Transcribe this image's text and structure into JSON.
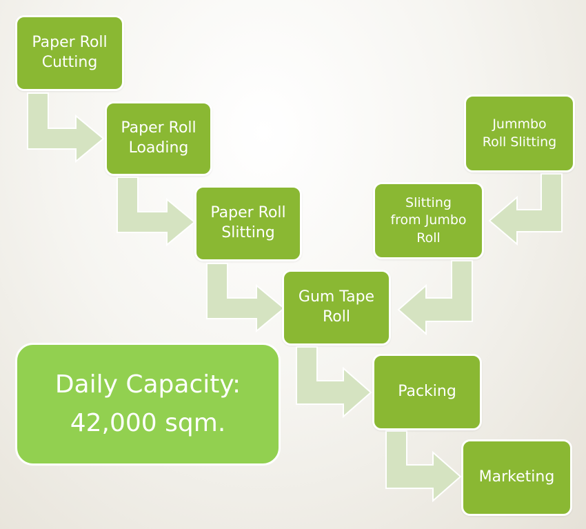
{
  "steps": {
    "paper_roll_cutting": "Paper Roll\nCutting",
    "paper_roll_loading": "Paper Roll\nLoading",
    "paper_roll_slitting": "Paper Roll\nSlitting",
    "jummbo_roll_slitting": "Jummbo\nRoll Slitting",
    "slitting_from_jumbo_roll": "Slitting\nfrom Jumbo\nRoll",
    "gum_tape_roll": "Gum Tape\nRoll",
    "packing": "Packing",
    "marketing": "Marketing"
  },
  "capacity": {
    "line1": "Daily Capacity:",
    "line2": "42,000 sqm."
  },
  "colors": {
    "box": "#8ab833",
    "capacity_box": "#92d050",
    "arrow": "#d5e3c1",
    "border": "#ffffff"
  }
}
